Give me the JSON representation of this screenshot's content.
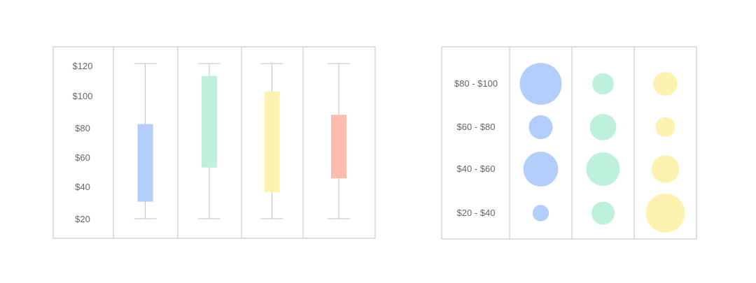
{
  "chart_data": [
    {
      "type": "box",
      "y_ticks": [
        "$120",
        "$100",
        "$80",
        "$60",
        "$40",
        "$20"
      ],
      "ylim": [
        20,
        120
      ],
      "series": [
        {
          "min": 20,
          "q1": 31,
          "q3": 81,
          "max": 120,
          "color": "#b3cefb"
        },
        {
          "min": 20,
          "q1": 53,
          "q3": 112,
          "max": 120,
          "color": "#bdf1dc"
        },
        {
          "min": 20,
          "q1": 37,
          "q3": 102,
          "max": 120,
          "color": "#fef2b1"
        },
        {
          "min": 20,
          "q1": 46,
          "q3": 87,
          "max": 120,
          "color": "#fdbcad"
        }
      ]
    },
    {
      "type": "bubble",
      "row_labels": [
        "$80 - $100",
        "$60 - $80",
        "$40 - $60",
        "$20 - $40"
      ],
      "series": [
        {
          "color": "#b3cefb",
          "sizes": [
            1.0,
            0.57,
            0.83,
            0.39
          ]
        },
        {
          "color": "#bdf1dc",
          "sizes": [
            0.51,
            0.63,
            0.8,
            0.55
          ]
        },
        {
          "color": "#fef2b1",
          "sizes": [
            0.57,
            0.47,
            0.66,
            0.93
          ]
        }
      ]
    }
  ]
}
